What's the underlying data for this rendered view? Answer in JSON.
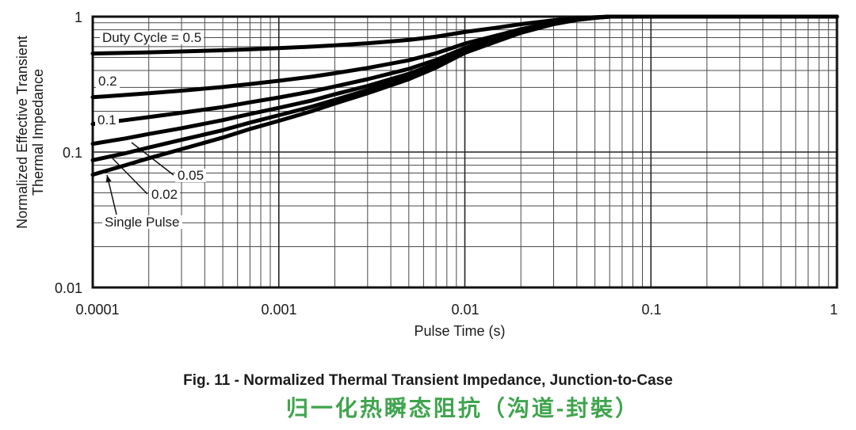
{
  "figure": {
    "y_axis_title_line1": "Normalized Effective Transient",
    "y_axis_title_line2": "Thermal Impedance",
    "caption_en": "Fig. 11 - Normalized Thermal Transient Impedance, Junction-to-Case",
    "caption_zh": "归一化热瞬态阻抗（沟道-封裝）",
    "accent_green": "#3FA44D",
    "curve_color": "#000000",
    "grid_color": "#4a4a4a"
  },
  "chart_data": {
    "type": "line",
    "title": "Normalized Thermal Transient Impedance, Junction-to-Case",
    "xlabel": "Pulse Time (s)",
    "ylabel": "Normalized Effective Transient Thermal Impedance",
    "x_scale": "log",
    "y_scale": "log",
    "xlim": [
      0.0001,
      1
    ],
    "ylim": [
      0.01,
      1
    ],
    "grid": "full log grid with minor decades",
    "legend_position": "inline curve labels",
    "x_ticks": [
      0.0001,
      0.001,
      0.01,
      0.1,
      1
    ],
    "x_tick_labels": [
      "0.0001",
      "0.001",
      "0.01",
      "0.1",
      "1"
    ],
    "y_ticks": [
      1,
      0.1,
      0.01
    ],
    "y_tick_labels": [
      "1",
      "0.1",
      "0.01"
    ],
    "model": "Z(D,t) = D + (1 - D) * Z_single_pulse(t), all curves saturate at 1.0 near t = 0.06 s",
    "t": [
      0.0001,
      0.00015,
      0.0002,
      0.0003,
      0.0005,
      0.0007,
      0.001,
      0.0015,
      0.002,
      0.003,
      0.005,
      0.007,
      0.01,
      0.015,
      0.02,
      0.03,
      0.04,
      0.05,
      0.06,
      0.1,
      1.0
    ],
    "series": [
      {
        "name": "Duty Cycle = 0.5",
        "duty_cycle": 0.5,
        "z": [
          0.534,
          0.54,
          0.545,
          0.553,
          0.564,
          0.574,
          0.585,
          0.6,
          0.614,
          0.636,
          0.673,
          0.71,
          0.77,
          0.83,
          0.88,
          0.94,
          0.973,
          0.99,
          1.0,
          1.0,
          1.0
        ]
      },
      {
        "name": "0.2",
        "duty_cycle": 0.2,
        "z": [
          0.254,
          0.264,
          0.272,
          0.284,
          0.302,
          0.318,
          0.336,
          0.36,
          0.382,
          0.418,
          0.476,
          0.536,
          0.632,
          0.728,
          0.808,
          0.904,
          0.956,
          0.984,
          1.0,
          1.0,
          1.0
        ]
      },
      {
        "name": "0.1",
        "duty_cycle": 0.1,
        "z": [
          0.161,
          0.172,
          0.181,
          0.195,
          0.215,
          0.233,
          0.253,
          0.28,
          0.305,
          0.345,
          0.411,
          0.478,
          0.586,
          0.694,
          0.784,
          0.892,
          0.951,
          0.982,
          1.0,
          1.0,
          1.0
        ]
      },
      {
        "name": "0.05",
        "duty_cycle": 0.05,
        "z": [
          0.115,
          0.126,
          0.136,
          0.15,
          0.172,
          0.191,
          0.212,
          0.24,
          0.267,
          0.308,
          0.378,
          0.449,
          0.563,
          0.677,
          0.772,
          0.886,
          0.948,
          0.981,
          1.0,
          1.0,
          1.0
        ]
      },
      {
        "name": "0.02",
        "duty_cycle": 0.02,
        "z": [
          0.087,
          0.098,
          0.108,
          0.123,
          0.145,
          0.165,
          0.187,
          0.216,
          0.243,
          0.287,
          0.358,
          0.432,
          0.549,
          0.667,
          0.765,
          0.882,
          0.946,
          0.98,
          1.0,
          1.0,
          1.0
        ]
      },
      {
        "name": "Single Pulse",
        "duty_cycle": null,
        "z": [
          0.068,
          0.08,
          0.09,
          0.105,
          0.128,
          0.148,
          0.17,
          0.2,
          0.228,
          0.272,
          0.345,
          0.42,
          0.54,
          0.66,
          0.76,
          0.88,
          0.945,
          0.98,
          1.0,
          1.0,
          1.0
        ]
      }
    ],
    "annotations": [
      {
        "label": "Duty Cycle = 0.5"
      },
      {
        "label": "0.2"
      },
      {
        "label": "0.1"
      },
      {
        "label": "0.05",
        "leader": [
          219,
          221,
          166,
          180
        ]
      },
      {
        "label": "0.02",
        "leader": [
          186,
          245,
          142,
          200
        ]
      },
      {
        "label": "Single Pulse",
        "leader": [
          147,
          271,
          135,
          221
        ],
        "arrow": true
      }
    ]
  }
}
